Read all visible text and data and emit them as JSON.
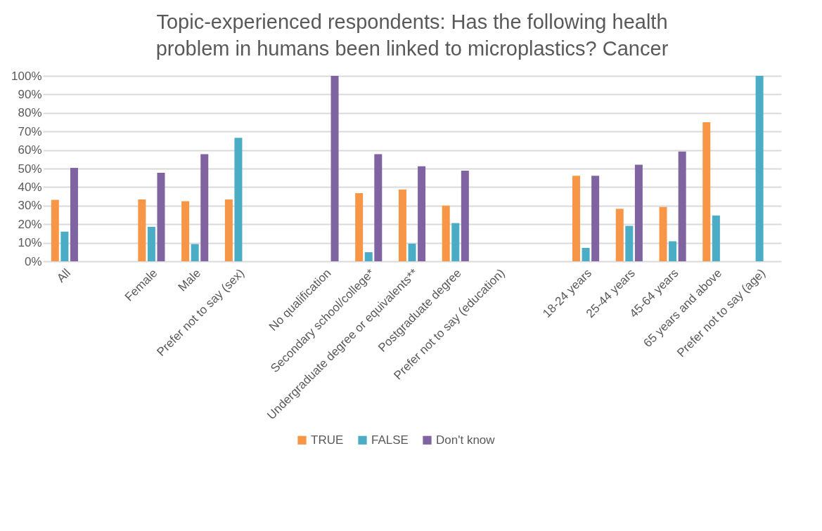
{
  "chart_data": {
    "type": "bar",
    "title": "Topic-experienced respondents: Has the following health problem in humans been linked to microplastics? Cancer",
    "categories": [
      "All",
      null,
      "Female",
      "Male",
      "Prefer not to say (sex)",
      null,
      "No qualification",
      "Secondary school/college*",
      "Undergraduate degree or equivalents**",
      "Postgraduate degree",
      "Prefer not to say (education)",
      null,
      "18-24 years",
      "25-44 years",
      "45-64 years",
      "65 years and above",
      "Prefer not to say (age)"
    ],
    "series": [
      {
        "name": "TRUE",
        "color": "#f79646",
        "values": [
          33.1,
          null,
          33.3,
          32.4,
          33.3,
          null,
          null,
          36.7,
          38.7,
          30.0,
          null,
          null,
          46.1,
          28.3,
          29.3,
          75.0,
          null
        ]
      },
      {
        "name": "FALSE",
        "color": "#4bacc6",
        "values": [
          16.0,
          null,
          18.6,
          9.3,
          66.6,
          null,
          null,
          4.9,
          9.5,
          20.6,
          null,
          null,
          7.2,
          19.1,
          10.8,
          24.7,
          100
        ]
      },
      {
        "name": "Don't know",
        "color": "#8064a2",
        "values": [
          50.4,
          null,
          47.7,
          57.8,
          null,
          null,
          100,
          57.8,
          51.2,
          48.9,
          null,
          null,
          46.1,
          52.1,
          59.2,
          null,
          null
        ]
      }
    ],
    "ylim": [
      0,
      100
    ],
    "yticks": [
      {
        "value": 0,
        "label": "0%"
      },
      {
        "value": 10,
        "label": "10%"
      },
      {
        "value": 20,
        "label": "20%"
      },
      {
        "value": 30,
        "label": "30%"
      },
      {
        "value": 40,
        "label": "40%"
      },
      {
        "value": 50,
        "label": "50%"
      },
      {
        "value": 60,
        "label": "60%"
      },
      {
        "value": 70,
        "label": "70%"
      },
      {
        "value": 80,
        "label": "80%"
      },
      {
        "value": 90,
        "label": "90%"
      },
      {
        "value": 100,
        "label": "100%"
      }
    ],
    "grid": "y",
    "legend": "bottom"
  }
}
